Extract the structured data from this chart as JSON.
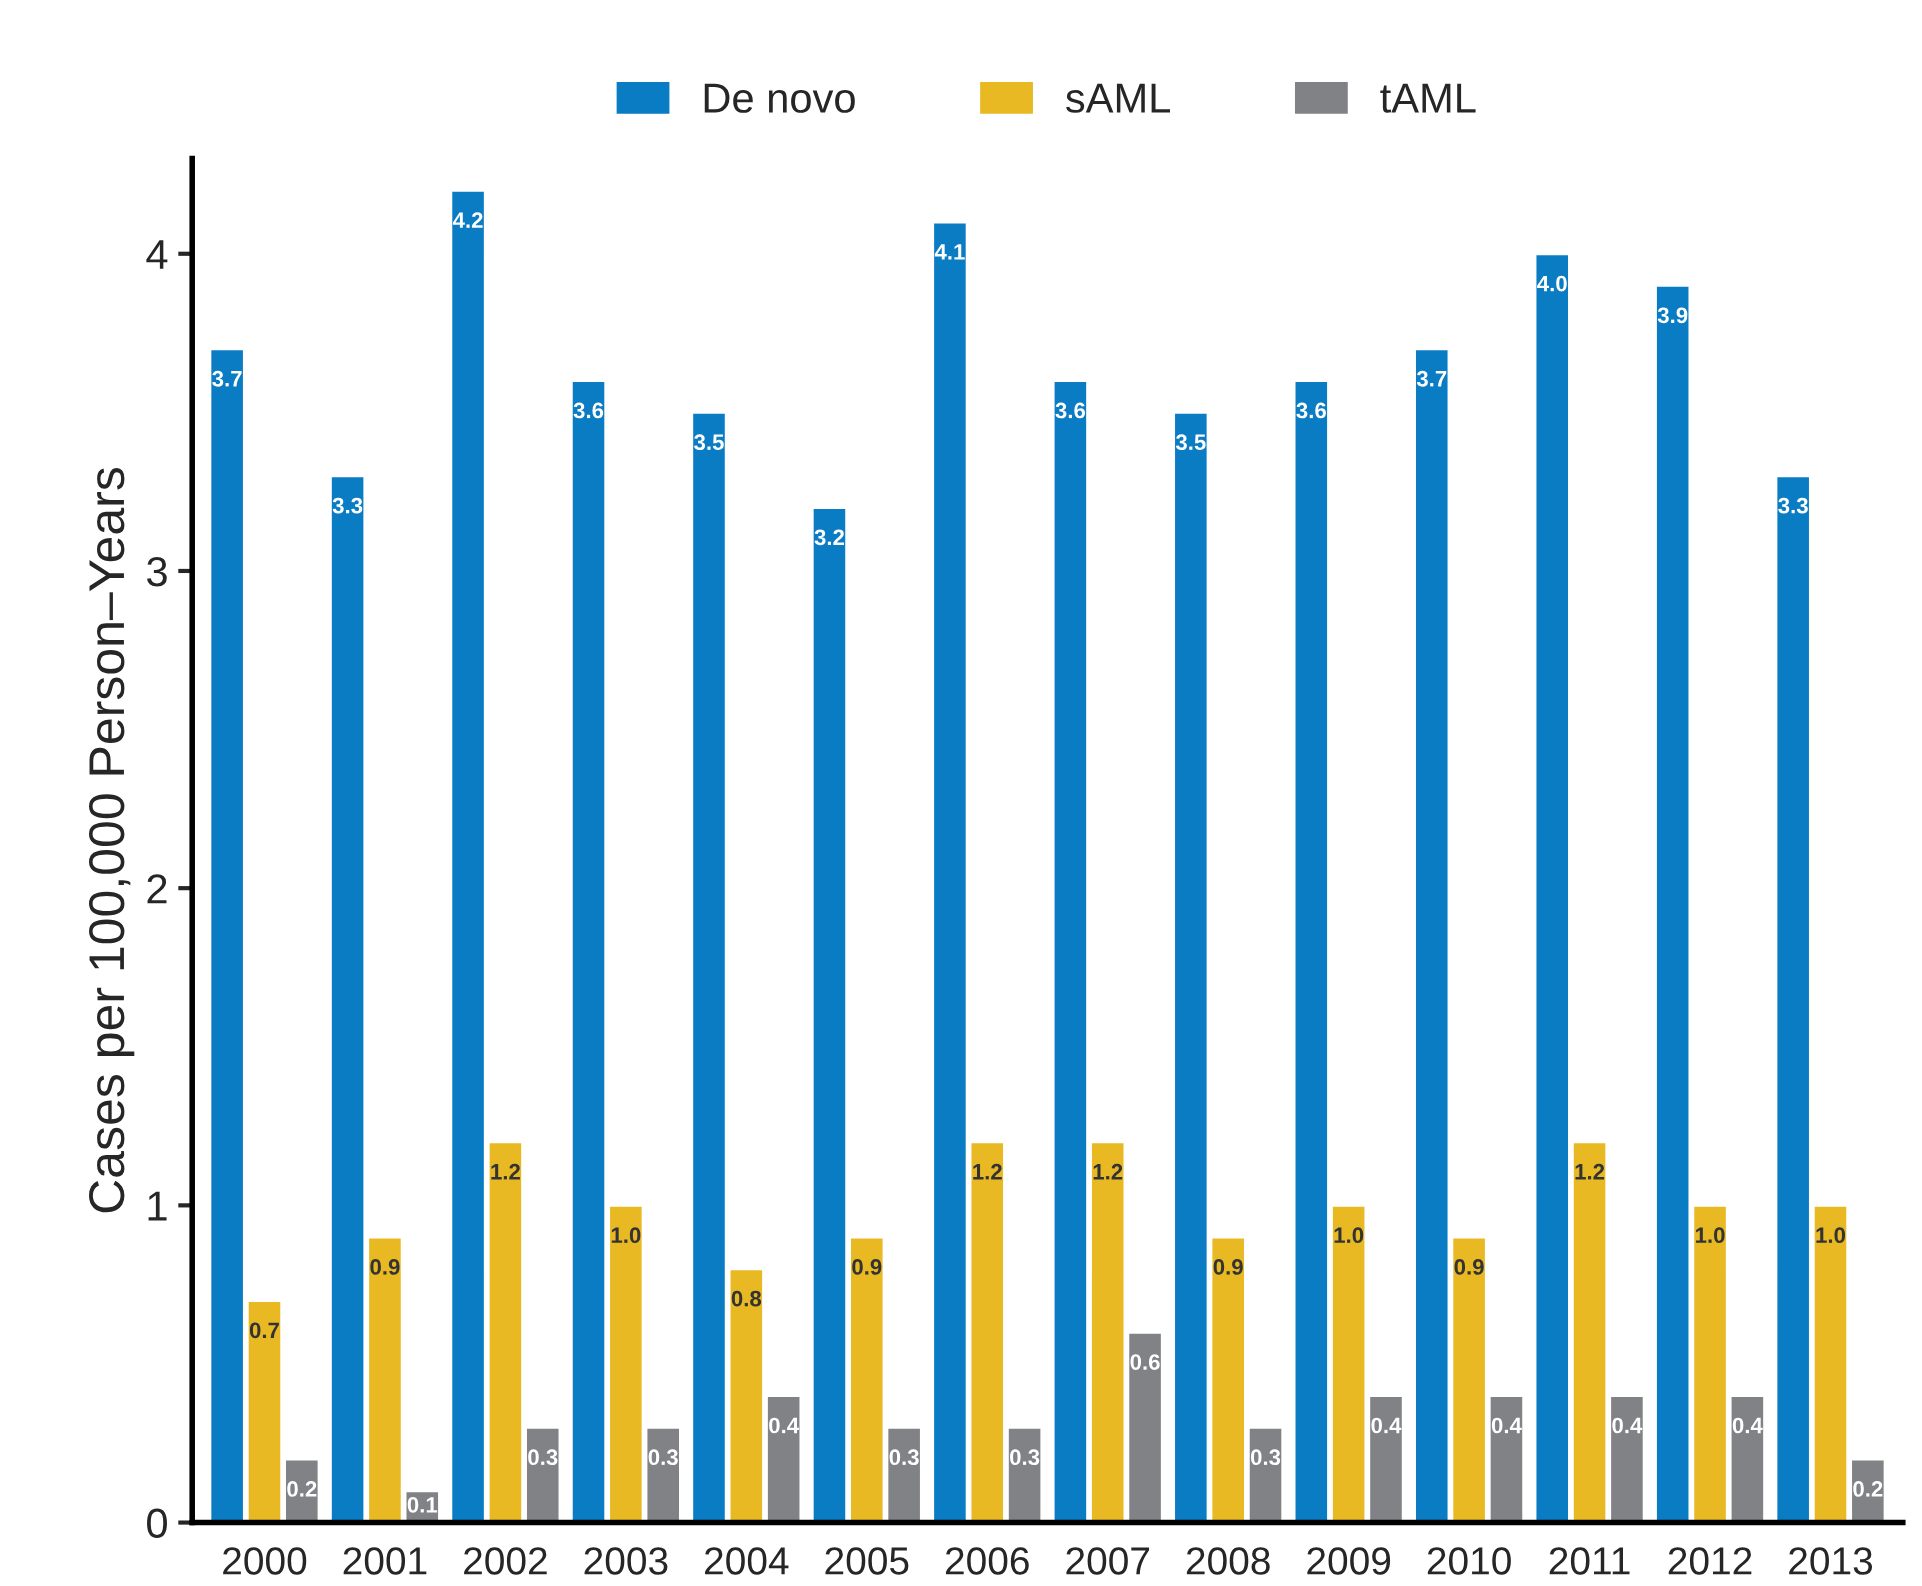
{
  "chart_data": {
    "type": "bar",
    "ylabel": "Cases per 100,000 Person–Years",
    "categories": [
      "2000",
      "2001",
      "2002",
      "2003",
      "2004",
      "2005",
      "2006",
      "2007",
      "2008",
      "2009",
      "2010",
      "2011",
      "2012",
      "2013"
    ],
    "series": [
      {
        "name": "De novo",
        "color": "#0a7cc4",
        "values": [
          3.7,
          3.3,
          4.2,
          3.6,
          3.5,
          3.2,
          4.1,
          3.6,
          3.5,
          3.6,
          3.7,
          4.0,
          3.9,
          3.3
        ],
        "value_labels": [
          "3.7",
          "3.3",
          "4.2",
          "3.6",
          "3.5",
          "3.2",
          "4.1",
          "3.6",
          "3.5",
          "3.6",
          "3.7",
          "4.0",
          "3.9",
          "3.3"
        ]
      },
      {
        "name": "sAML",
        "color": "#e8b923",
        "values": [
          0.7,
          0.9,
          1.2,
          1.0,
          0.8,
          0.9,
          1.2,
          1.2,
          0.9,
          1.0,
          0.9,
          1.2,
          1.0,
          1.0
        ],
        "value_labels": [
          "0.7",
          "0.9",
          "1.2",
          "1.0",
          "0.8",
          "0.9",
          "1.2",
          "1.2",
          "0.9",
          "1.0",
          "0.9",
          "1.2",
          "1.0",
          "1.0"
        ]
      },
      {
        "name": "tAML",
        "color": "#808285",
        "values": [
          0.2,
          0.1,
          0.3,
          0.3,
          0.4,
          0.3,
          0.3,
          0.6,
          0.3,
          0.4,
          0.4,
          0.4,
          0.4,
          0.2
        ],
        "value_labels": [
          "0.2",
          "0.1",
          "0.3",
          "0.3",
          "0.4",
          "0.3",
          "0.3",
          "0.6",
          "0.3",
          "0.4",
          "0.4",
          "0.4",
          "0.4",
          "0.2"
        ]
      }
    ],
    "ylim": [
      0,
      4.3
    ],
    "yticks": [
      0,
      1,
      2,
      3,
      4
    ],
    "grid": false,
    "legend": "top"
  }
}
